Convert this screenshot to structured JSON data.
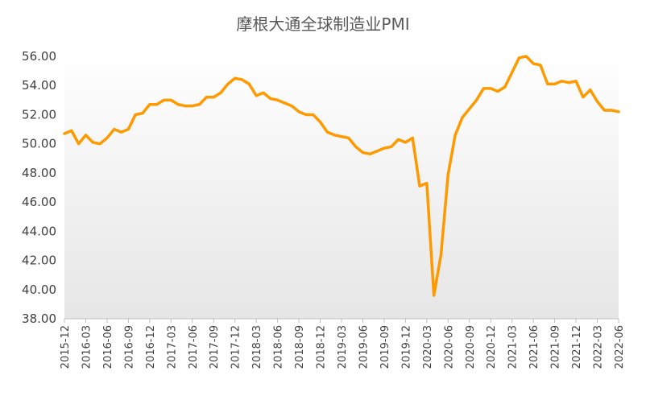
{
  "colors": {
    "line": "#FF9900",
    "axis": "#BFBFBF",
    "fill_top": "#ffffff",
    "fill_bottom": "#e6e6e6"
  },
  "chart_data": {
    "type": "line",
    "title": "摩根大通全球制造业PMI",
    "xlabel": "",
    "ylabel": "",
    "ylim": [
      38,
      56
    ],
    "y_ticks": [
      "38.00",
      "40.00",
      "42.00",
      "44.00",
      "46.00",
      "48.00",
      "50.00",
      "52.00",
      "54.00",
      "56.00"
    ],
    "x_tick_labels": [
      "2015-12",
      "2016-03",
      "2016-06",
      "2016-09",
      "2016-12",
      "2017-03",
      "2017-06",
      "2017-09",
      "2017-12",
      "2018-03",
      "2018-06",
      "2018-09",
      "2018-12",
      "2019-03",
      "2019-06",
      "2019-09",
      "2019-12",
      "2020-03",
      "2020-06",
      "2020-09",
      "2020-12",
      "2021-03",
      "2021-06",
      "2021-09",
      "2021-12",
      "2022-03",
      "2022-06"
    ],
    "grid": false,
    "legend": "none",
    "series": [
      {
        "x": [
          "2015-12",
          "2016-01",
          "2016-02",
          "2016-03",
          "2016-04",
          "2016-05",
          "2016-06",
          "2016-07",
          "2016-08",
          "2016-09",
          "2016-10",
          "2016-11",
          "2016-12",
          "2017-01",
          "2017-02",
          "2017-03",
          "2017-04",
          "2017-05",
          "2017-06",
          "2017-07",
          "2017-08",
          "2017-09",
          "2017-10",
          "2017-11",
          "2017-12",
          "2018-01",
          "2018-02",
          "2018-03",
          "2018-04",
          "2018-05",
          "2018-06",
          "2018-07",
          "2018-08",
          "2018-09",
          "2018-10",
          "2018-11",
          "2018-12",
          "2019-01",
          "2019-02",
          "2019-03",
          "2019-04",
          "2019-05",
          "2019-06",
          "2019-07",
          "2019-08",
          "2019-09",
          "2019-10",
          "2019-11",
          "2019-12",
          "2020-01",
          "2020-02",
          "2020-03",
          "2020-04",
          "2020-05",
          "2020-06",
          "2020-07",
          "2020-08",
          "2020-09",
          "2020-10",
          "2020-11",
          "2020-12",
          "2021-01",
          "2021-02",
          "2021-03",
          "2021-04",
          "2021-05",
          "2021-06",
          "2021-07",
          "2021-08",
          "2021-09",
          "2021-10",
          "2021-11",
          "2021-12",
          "2022-01",
          "2022-02",
          "2022-03",
          "2022-04",
          "2022-05",
          "2022-06"
        ],
        "values": [
          50.7,
          50.9,
          50.0,
          50.6,
          50.1,
          50.0,
          50.4,
          51.0,
          50.8,
          51.0,
          52.0,
          52.1,
          52.7,
          52.7,
          53.0,
          53.0,
          52.7,
          52.6,
          52.6,
          52.7,
          53.2,
          53.2,
          53.5,
          54.1,
          54.5,
          54.4,
          54.1,
          53.3,
          53.5,
          53.1,
          53.0,
          52.8,
          52.6,
          52.2,
          52.0,
          52.0,
          51.5,
          50.8,
          50.6,
          50.5,
          50.4,
          49.8,
          49.4,
          49.3,
          49.5,
          49.7,
          49.8,
          50.3,
          50.1,
          50.4,
          47.1,
          47.3,
          39.6,
          42.4,
          47.9,
          50.6,
          51.8,
          52.4,
          53.0,
          53.8,
          53.8,
          53.6,
          53.9,
          54.9,
          55.9,
          56.0,
          55.5,
          55.4,
          54.1,
          54.1,
          54.3,
          54.2,
          54.3,
          53.2,
          53.7,
          52.9,
          52.3,
          52.3,
          52.2
        ]
      }
    ]
  }
}
